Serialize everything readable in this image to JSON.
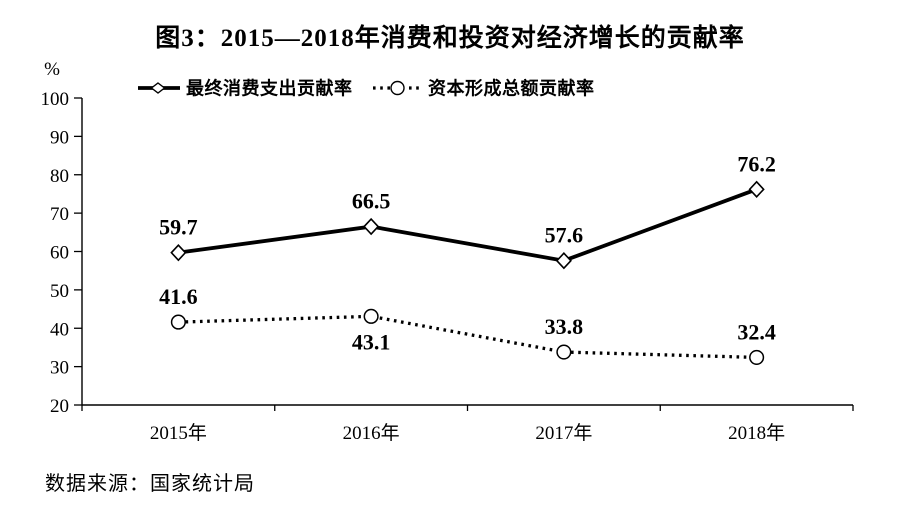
{
  "title": "图3：2015—2018年消费和投资对经济增长的贡献率",
  "source_note": "数据来源：国家统计局",
  "chart_data": {
    "type": "line",
    "title": "图3：2015—2018年消费和投资对经济增长的贡献率",
    "categories": [
      "2015年",
      "2016年",
      "2017年",
      "2018年"
    ],
    "series": [
      {
        "name": "最终消费支出贡献率",
        "line_style": "solid",
        "marker": "diamond",
        "values": [
          59.7,
          66.5,
          57.6,
          76.2
        ],
        "label_positions": [
          "above",
          "above",
          "above",
          "above"
        ]
      },
      {
        "name": "资本形成总额贡献率",
        "line_style": "dotted",
        "marker": "circle",
        "values": [
          41.6,
          43.1,
          33.8,
          32.4
        ],
        "label_positions": [
          "above",
          "below",
          "above",
          "above"
        ]
      }
    ],
    "ylabel": "%",
    "ylim": [
      20,
      100
    ],
    "yticks": [
      20,
      30,
      40,
      50,
      60,
      70,
      80,
      90,
      100
    ],
    "grid": false,
    "legend_position": "top",
    "color": "#000000",
    "background": "#ffffff"
  }
}
